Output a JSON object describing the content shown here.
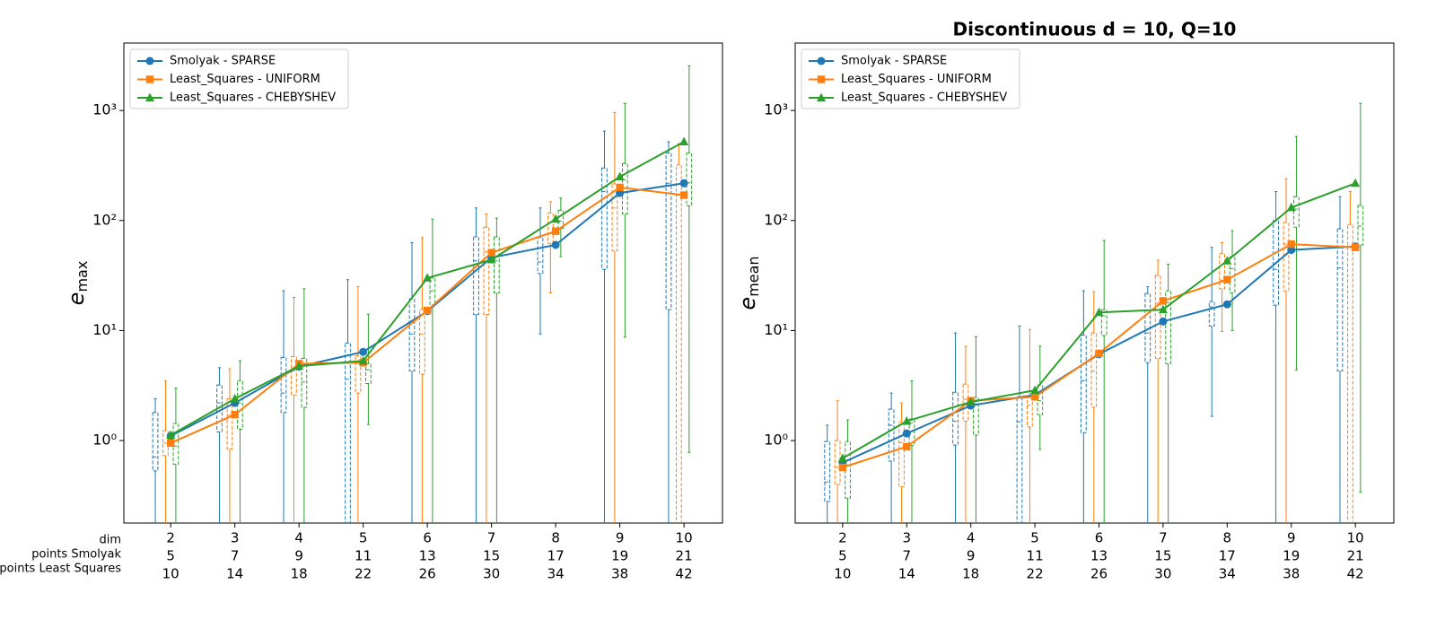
{
  "chart_data": [
    {
      "type": "line",
      "ylabel": {
        "base": "e",
        "sub": "max"
      },
      "x": [
        2,
        3,
        4,
        5,
        6,
        7,
        8,
        9,
        10
      ],
      "xlabel": [
        "dim",
        "points Smolyak",
        "points Least Squares"
      ],
      "x_rows": [
        [
          5,
          7,
          9,
          11,
          13,
          15,
          17,
          19,
          21
        ],
        [
          10,
          14,
          18,
          22,
          26,
          30,
          34,
          38,
          42
        ]
      ],
      "xlim": [
        1.27,
        10.6
      ],
      "ylim": [
        0.178,
        4100
      ],
      "log_y": true,
      "yticks": [
        {
          "value": 1,
          "label": "10⁰"
        },
        {
          "value": 10,
          "label": "10¹"
        },
        {
          "value": 100,
          "label": "10²"
        },
        {
          "value": 1000,
          "label": "10³"
        }
      ],
      "legend": "upper left",
      "series": [
        {
          "name": "Smolyak - SPARSE",
          "color": "#1f77b4",
          "marker": "o",
          "values": [
            1.1,
            2.2,
            4.7,
            6.4,
            15,
            46,
            60,
            178,
            218
          ],
          "boxes": {
            "whislo": [
              0.1,
              0.1,
              0.1,
              0.05,
              0.05,
              0.05,
              9.3,
              0.05,
              0.05
            ],
            "q1": [
              0.53,
              1.2,
              1.8,
              0.15,
              4.3,
              14,
              33,
              36,
              15.5
            ],
            "med": [
              0.71,
              2.2,
              2.7,
              3.6,
              9.3,
              43,
              42,
              183,
              218
            ],
            "q3": [
              1.8,
              3.2,
              5.7,
              7.7,
              19.5,
              71,
              70,
              300,
              410
            ],
            "whishi": [
              2.4,
              4.6,
              23,
              29,
              63,
              130,
              130,
              650,
              520
            ]
          }
        },
        {
          "name": "Least_Squares - UNIFORM",
          "color": "#ff7f0e",
          "marker": "s",
          "values": [
            0.95,
            1.72,
            5.0,
            5.1,
            15.2,
            51,
            80,
            200,
            170
          ],
          "boxes": {
            "whislo": [
              0.05,
              0.05,
              0.05,
              0.05,
              0.05,
              0.05,
              22,
              0.05,
              0.05
            ],
            "q1": [
              0.73,
              0.84,
              2.6,
              2.7,
              4,
              14,
              62,
              53,
              0.15
            ],
            "med": [
              0.95,
              1.7,
              4.3,
              5.1,
              9.3,
              52,
              76,
              130,
              170
            ],
            "q3": [
              1.23,
              2.4,
              5.8,
              5.9,
              15.5,
              87,
              117,
              215,
              320
            ],
            "whishi": [
              3.5,
              4.5,
              20,
              25,
              70,
              115,
              148,
              960,
              500
            ]
          }
        },
        {
          "name": "Least_Squares - CHEBYSHEV",
          "color": "#2ca02c",
          "marker": "^",
          "values": [
            1.12,
            2.4,
            4.75,
            5.3,
            30,
            44,
            103,
            250,
            520
          ],
          "boxes": {
            "whislo": [
              0.05,
              0.05,
              0.05,
              1.4,
              0.05,
              0.05,
              47,
              8.7,
              0.78
            ],
            "q1": [
              0.61,
              1.27,
              2,
              3.3,
              17,
              22,
              85,
              115,
              136
            ],
            "med": [
              0.89,
              2.2,
              3.4,
              4.4,
              23,
              43,
              99,
              235,
              220
            ],
            "q3": [
              1.43,
              3.5,
              5.6,
              5,
              30,
              71,
              124,
              330,
              410
            ],
            "whishi": [
              3,
              5.3,
              24,
              14.1,
              103,
              105,
              160,
              1160,
              2550
            ]
          }
        }
      ]
    },
    {
      "type": "line",
      "title": "Discontinuous d = 10, Q=10",
      "ylabel": {
        "base": "e",
        "sub": "mean"
      },
      "x": [
        2,
        3,
        4,
        5,
        6,
        7,
        8,
        9,
        10
      ],
      "x_rows": [
        [
          5,
          7,
          9,
          11,
          13,
          15,
          17,
          19,
          21
        ],
        [
          10,
          14,
          18,
          22,
          26,
          30,
          34,
          38,
          42
        ]
      ],
      "xlim": [
        1.26,
        10.6
      ],
      "ylim": [
        0.178,
        4100
      ],
      "log_y": true,
      "yticks": [
        {
          "value": 1,
          "label": "10⁰"
        },
        {
          "value": 10,
          "label": "10¹"
        },
        {
          "value": 100,
          "label": "10²"
        },
        {
          "value": 1000,
          "label": "10³"
        }
      ],
      "legend": "upper left",
      "series": [
        {
          "name": "Smolyak - SPARSE",
          "color": "#1f77b4",
          "marker": "o",
          "values": [
            0.63,
            1.16,
            2.08,
            2.6,
            6.1,
            12.1,
            17.3,
            54,
            58
          ],
          "boxes": {
            "whislo": [
              0.05,
              0.05,
              0.05,
              0.05,
              0.05,
              0.05,
              1.66,
              0.05,
              0.05
            ],
            "q1": [
              0.28,
              0.65,
              0.91,
              0.15,
              1.18,
              5.1,
              11,
              17,
              4.3
            ],
            "med": [
              0.42,
              1.38,
              1.5,
              1.48,
              3.5,
              9.5,
              16.4,
              36,
              37
            ],
            "q3": [
              0.98,
              1.93,
              2.75,
              2.5,
              9.1,
              21.7,
              18.3,
              100,
              84
            ],
            "whishi": [
              1.38,
              2.7,
              9.5,
              11,
              23,
              25,
              57,
              183,
              165
            ]
          }
        },
        {
          "name": "Least_Squares - UNIFORM",
          "color": "#ff7f0e",
          "marker": "s",
          "values": [
            0.57,
            0.88,
            2.3,
            2.5,
            6.2,
            18.6,
            29,
            61,
            57
          ],
          "boxes": {
            "whislo": [
              0.05,
              0.05,
              0.05,
              0.05,
              0.05,
              0.05,
              9.8,
              0.05,
              0.05
            ],
            "q1": [
              0.4,
              0.38,
              1.5,
              1.33,
              2,
              5.6,
              24,
              23,
              0.15
            ],
            "med": [
              0.57,
              0.96,
              2.37,
              2.1,
              4.3,
              17.7,
              28.7,
              61,
              57
            ],
            "q3": [
              1,
              1.48,
              3.26,
              2.55,
              9.5,
              31.6,
              50,
              96,
              92
            ],
            "whishi": [
              2.3,
              2.2,
              7.2,
              10.2,
              22.5,
              43.5,
              63,
              240,
              183
            ]
          }
        },
        {
          "name": "Least_Squares - CHEBYSHEV",
          "color": "#2ca02c",
          "marker": "^",
          "values": [
            0.69,
            1.5,
            2.24,
            2.86,
            14.6,
            15.5,
            43,
            131,
            218
          ],
          "boxes": {
            "whislo": [
              0.05,
              0.05,
              0.05,
              0.83,
              0.05,
              0.05,
              10,
              4.4,
              0.34
            ],
            "q1": [
              0.3,
              0.9,
              1.12,
              1.72,
              9,
              5,
              22,
              87,
              60
            ],
            "med": [
              0.6,
              1.45,
              2.16,
              2.3,
              13.6,
              18,
              36.6,
              127,
              89
            ],
            "q3": [
              0.98,
              1.57,
              2.46,
              3.2,
              15.5,
              23,
              47,
              165,
              137
            ],
            "whishi": [
              1.54,
              3.5,
              8.8,
              7.2,
              66,
              40,
              81,
              580,
              1160
            ]
          }
        }
      ]
    }
  ]
}
